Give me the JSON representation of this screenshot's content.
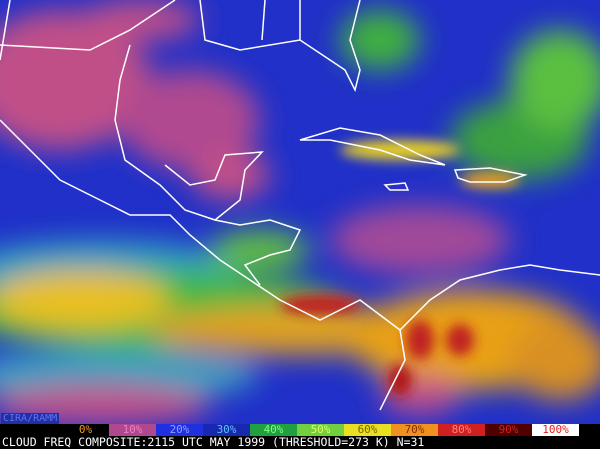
{
  "credit": "CIRA/RAMM",
  "legend": {
    "labels": [
      "0%",
      "10%",
      "20%",
      "30%",
      "40%",
      "50%",
      "60%",
      "70%",
      "80%",
      "90%",
      "100%"
    ]
  },
  "caption": "CLOUD FREQ COMPOSITE:2115 UTC MAY 1999 (THRESHOLD=273 K) N=31"
}
